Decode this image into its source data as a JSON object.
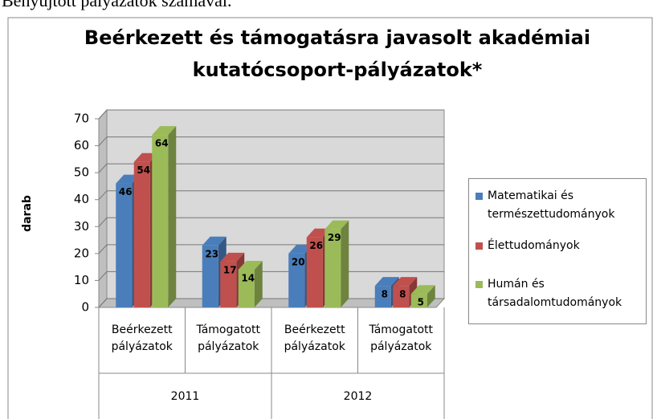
{
  "page_text": "Benyújtott pályázatok számával.",
  "chart_data": {
    "type": "bar3d",
    "title": [
      "Beérkezett és támogatásra javasolt akadémiai",
      "kutatócsoport-pályázatok*"
    ],
    "ylabel": "darab",
    "categories": [
      "Beérkezett pályázatok",
      "Támogatott pályázatok",
      "Beérkezett pályázatok",
      "Támogatott pályázatok"
    ],
    "groups": [
      "2011",
      "2012"
    ],
    "series": [
      {
        "name": "Matematikai és természettudományok",
        "color": "#4a7ebb",
        "values": [
          46,
          23,
          20,
          8
        ]
      },
      {
        "name": "Élettudományok",
        "color": "#c0504d",
        "values": [
          54,
          17,
          26,
          8
        ]
      },
      {
        "name": "Humán és társadalomtudományok",
        "color": "#9bbb59",
        "values": [
          64,
          14,
          29,
          5
        ]
      }
    ],
    "ylim": [
      0,
      70
    ],
    "yticks": [
      0,
      10,
      20,
      30,
      40,
      50,
      60,
      70
    ],
    "grid": true,
    "legend": "right"
  }
}
